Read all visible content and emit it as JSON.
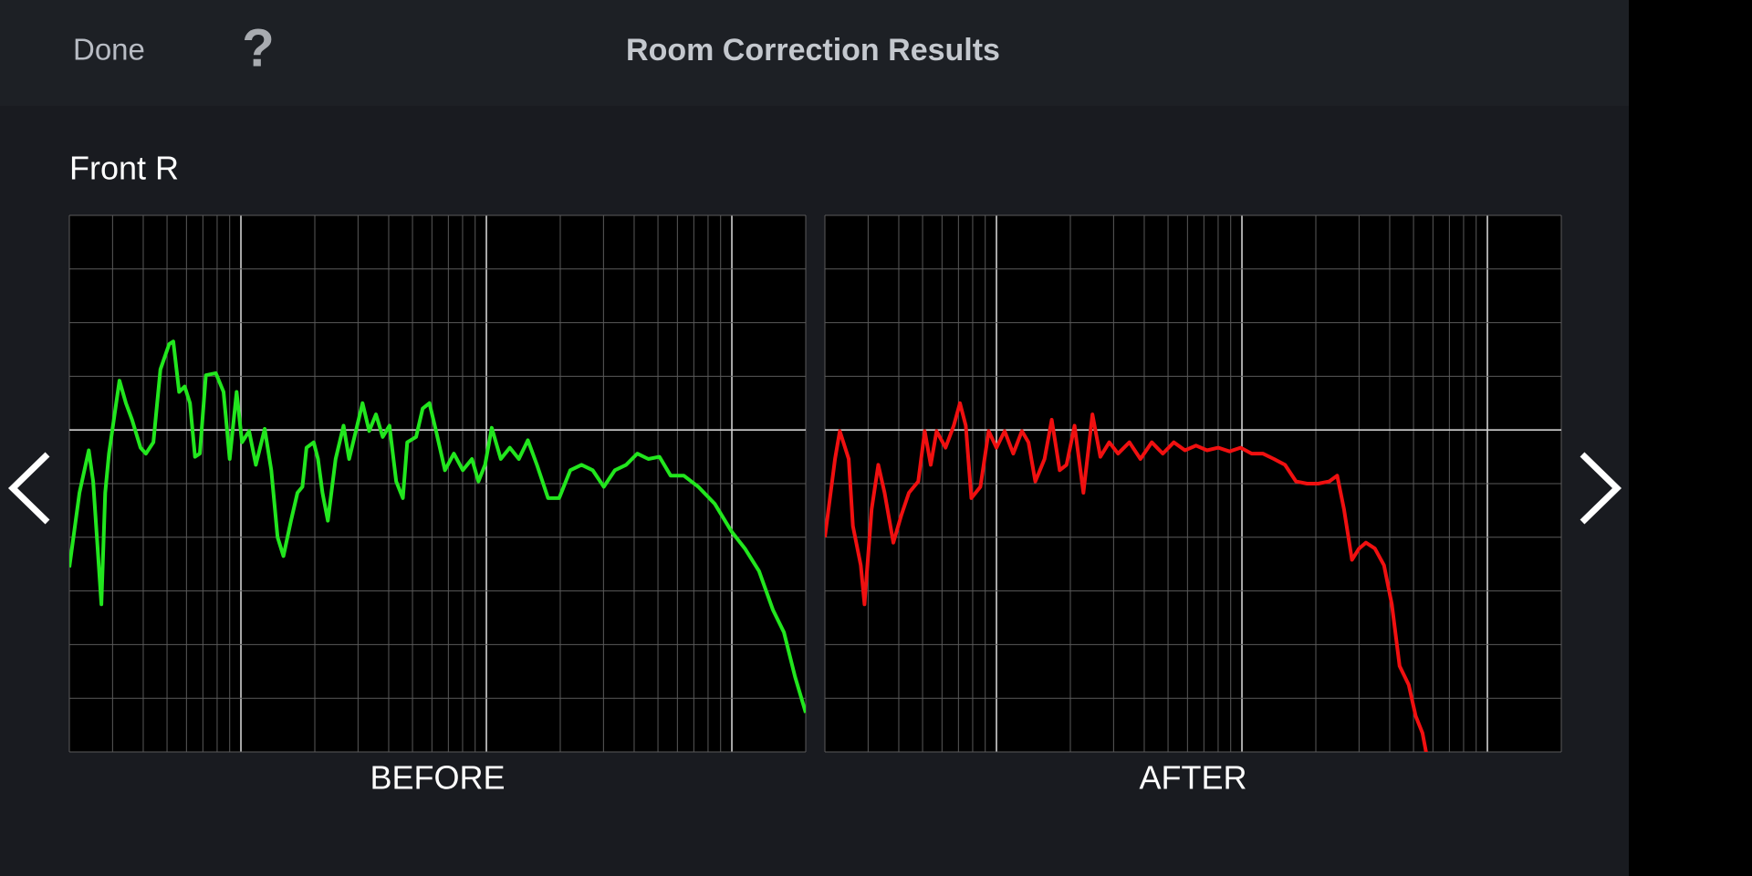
{
  "header": {
    "done": "Done",
    "help": "?",
    "title": "Room Correction Results"
  },
  "channel": "Front R",
  "chart_data": [
    {
      "type": "line",
      "title": "BEFORE",
      "color": "#22e61e",
      "xlog": true,
      "grid": true,
      "xlim": [
        20,
        20000
      ],
      "ylim": [
        -6,
        4
      ],
      "xticks": [
        20,
        30,
        40,
        50,
        60,
        70,
        80,
        90,
        100,
        200,
        300,
        400,
        500,
        600,
        700,
        800,
        900,
        1000,
        2000,
        3000,
        4000,
        5000,
        6000,
        7000,
        8000,
        9000,
        10000,
        20000
      ],
      "yticks": [
        -6,
        -5,
        -4,
        -3,
        -2,
        -1,
        0,
        1,
        2,
        3,
        4
      ],
      "x": [
        20,
        22,
        24,
        25,
        27,
        28,
        29,
        32,
        34,
        36,
        39,
        41,
        44,
        47,
        51,
        53,
        56,
        59,
        62,
        65,
        68,
        72,
        79,
        85,
        90,
        96,
        101,
        108,
        115,
        125,
        133,
        141,
        149,
        160,
        170,
        178,
        185,
        198,
        206,
        215,
        226,
        243,
        262,
        276,
        294,
        313,
        333,
        355,
        378,
        403,
        429,
        457,
        476,
        517,
        550,
        586,
        624,
        678,
        737,
        802,
        873,
        928,
        988,
        1052,
        1145,
        1246,
        1356,
        1476,
        1606,
        1783,
        1980,
        2198,
        2441,
        2710,
        3009,
        3340,
        3710,
        4120,
        4570,
        5070,
        5630,
        6370,
        7300,
        8530,
        10000,
        11300,
        12900,
        14700,
        16300,
        18100,
        20000
      ],
      "values": [
        -2.56,
        -1.17,
        -0.38,
        -0.96,
        -3.25,
        -1.17,
        -0.44,
        0.92,
        0.5,
        0.19,
        -0.33,
        -0.44,
        -0.23,
        1.13,
        1.6,
        1.65,
        0.71,
        0.81,
        0.5,
        -0.5,
        -0.44,
        1.02,
        1.06,
        0.71,
        -0.54,
        0.71,
        -0.23,
        -0.02,
        -0.65,
        0.02,
        -0.75,
        -2.0,
        -2.35,
        -1.69,
        -1.17,
        -1.06,
        -0.33,
        -0.23,
        -0.54,
        -1.17,
        -1.69,
        -0.54,
        0.08,
        -0.54,
        -0.02,
        0.5,
        -0.02,
        0.29,
        -0.13,
        0.08,
        -0.96,
        -1.27,
        -0.23,
        -0.13,
        0.4,
        0.5,
        -0.02,
        -0.75,
        -0.44,
        -0.75,
        -0.54,
        -0.96,
        -0.65,
        0.04,
        -0.54,
        -0.33,
        -0.54,
        -0.19,
        -0.65,
        -1.27,
        -1.27,
        -0.75,
        -0.65,
        -0.75,
        -1.06,
        -0.75,
        -0.65,
        -0.44,
        -0.54,
        -0.5,
        -0.85,
        -0.85,
        -1.06,
        -1.38,
        -1.9,
        -2.21,
        -2.63,
        -3.35,
        -3.77,
        -4.6,
        -5.27
      ]
    },
    {
      "type": "line",
      "title": "AFTER",
      "color": "#f01010",
      "xlog": true,
      "grid": true,
      "xlim": [
        20,
        20000
      ],
      "ylim": [
        -6,
        4
      ],
      "xticks": [
        20,
        30,
        40,
        50,
        60,
        70,
        80,
        90,
        100,
        200,
        300,
        400,
        500,
        600,
        700,
        800,
        900,
        1000,
        2000,
        3000,
        4000,
        5000,
        6000,
        7000,
        8000,
        9000,
        10000,
        20000
      ],
      "yticks": [
        -6,
        -5,
        -4,
        -3,
        -2,
        -1,
        0,
        1,
        2,
        3,
        4
      ],
      "x": [
        20,
        22,
        23,
        25,
        26,
        28,
        29,
        31,
        33,
        35,
        38,
        41,
        44,
        48,
        51,
        54,
        57,
        62,
        67,
        71,
        75,
        79,
        86,
        93,
        100,
        108,
        117,
        127,
        135,
        144,
        157,
        168,
        181,
        193,
        208,
        226,
        246,
        265,
        288,
        313,
        348,
        386,
        429,
        476,
        528,
        586,
        650,
        721,
        802,
        890,
        988,
        1096,
        1216,
        1350,
        1497,
        1661,
        1843,
        2045,
        2269,
        2444,
        2606,
        2807,
        3000,
        3200,
        3480,
        3790,
        4080,
        4390,
        4780,
        5100,
        5440,
        5680
      ],
      "values": [
        -2.0,
        -0.54,
        -0.02,
        -0.54,
        -1.79,
        -2.52,
        -3.25,
        -1.48,
        -0.65,
        -1.17,
        -2.1,
        -1.58,
        -1.17,
        -0.96,
        -0.02,
        -0.65,
        -0.02,
        -0.33,
        0.08,
        0.5,
        0.08,
        -1.27,
        -1.06,
        -0.02,
        -0.33,
        -0.02,
        -0.44,
        -0.02,
        -0.23,
        -0.96,
        -0.54,
        0.19,
        -0.75,
        -0.65,
        0.08,
        -1.17,
        0.29,
        -0.5,
        -0.23,
        -0.44,
        -0.23,
        -0.54,
        -0.23,
        -0.44,
        -0.23,
        -0.38,
        -0.29,
        -0.38,
        -0.33,
        -0.4,
        -0.33,
        -0.44,
        -0.44,
        -0.54,
        -0.65,
        -0.96,
        -1.0,
        -1.0,
        -0.96,
        -0.85,
        -1.48,
        -2.42,
        -2.21,
        -2.1,
        -2.21,
        -2.52,
        -3.25,
        -4.4,
        -4.75,
        -5.33,
        -5.65,
        -6.1
      ]
    }
  ]
}
